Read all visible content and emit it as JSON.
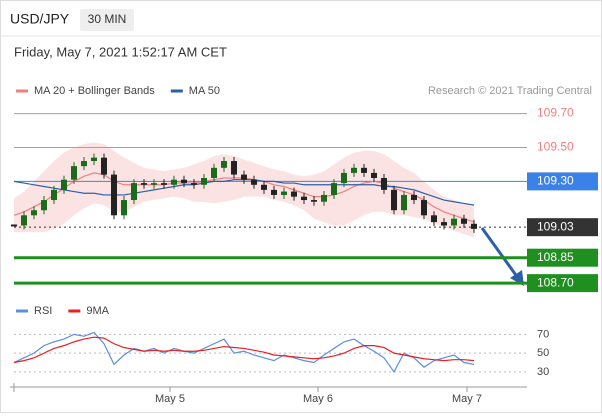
{
  "header": {
    "symbol": "USD/JPY",
    "timeframe": "30 MIN",
    "timestamp": "Friday, May 7, 2021 1:52:17 AM CET",
    "credit": "Research © 2021 Trading Central"
  },
  "chart_data": [
    {
      "type": "candlestick",
      "values": [
        109.04,
        109.1,
        109.13,
        109.19,
        109.25,
        109.31,
        109.39,
        109.42,
        109.44,
        109.34,
        109.1,
        109.19,
        109.29,
        109.28,
        109.29,
        109.28,
        109.31,
        109.29,
        109.28,
        109.32,
        109.38,
        109.42,
        109.34,
        109.31,
        109.28,
        109.25,
        109.22,
        109.24,
        109.21,
        109.19,
        109.18,
        109.22,
        109.29,
        109.35,
        109.38,
        109.35,
        109.32,
        109.25,
        109.13,
        109.22,
        109.19,
        109.1,
        109.06,
        109.04,
        109.08,
        109.05,
        109.02
      ],
      "series": [
        {
          "name": "MA 20 + Bollinger Bands",
          "color": "#f08080",
          "values": [
            109.1,
            109.12,
            109.15,
            109.18,
            109.22,
            109.26,
            109.3,
            109.33,
            109.35,
            109.34,
            109.3,
            109.28,
            109.28,
            109.28,
            109.28,
            109.28,
            109.29,
            109.29,
            109.29,
            109.3,
            109.31,
            109.32,
            109.32,
            109.32,
            109.31,
            109.3,
            109.28,
            109.27,
            109.25,
            109.23,
            109.21,
            109.21,
            109.22,
            109.24,
            109.27,
            109.29,
            109.3,
            109.29,
            109.26,
            109.24,
            109.22,
            109.19,
            109.15,
            109.12,
            109.1,
            109.08,
            109.06
          ],
          "upper": [
            109.2,
            109.24,
            109.3,
            109.36,
            109.42,
            109.47,
            109.5,
            109.52,
            109.53,
            109.52,
            109.48,
            109.44,
            109.41,
            109.38,
            109.37,
            109.36,
            109.37,
            109.38,
            109.4,
            109.42,
            109.45,
            109.46,
            109.45,
            109.43,
            109.41,
            109.39,
            109.37,
            109.36,
            109.34,
            109.33,
            109.34,
            109.36,
            109.4,
            109.44,
            109.47,
            109.48,
            109.48,
            109.46,
            109.42,
            109.38,
            109.35,
            109.3,
            109.25,
            109.21,
            109.19,
            109.17,
            109.15
          ],
          "lower": [
            109.0,
            109.0,
            109.0,
            109.0,
            109.02,
            109.05,
            109.1,
            109.14,
            109.17,
            109.16,
            109.12,
            109.12,
            109.15,
            109.18,
            109.19,
            109.2,
            109.21,
            109.2,
            109.18,
            109.18,
            109.17,
            109.18,
            109.19,
            109.21,
            109.21,
            109.21,
            109.19,
            109.18,
            109.16,
            109.13,
            109.08,
            109.06,
            109.04,
            109.04,
            109.07,
            109.1,
            109.12,
            109.12,
            109.1,
            109.1,
            109.09,
            109.08,
            109.05,
            109.03,
            109.01,
            108.99,
            108.97
          ]
        },
        {
          "name": "MA 50",
          "color": "#2b5fa8",
          "values": [
            109.3,
            109.29,
            109.28,
            109.27,
            109.26,
            109.25,
            109.24,
            109.23,
            109.23,
            109.22,
            109.22,
            109.22,
            109.23,
            109.24,
            109.25,
            109.26,
            109.27,
            109.28,
            109.28,
            109.29,
            109.3,
            109.3,
            109.31,
            109.31,
            109.31,
            109.3,
            109.3,
            109.29,
            109.29,
            109.28,
            109.28,
            109.28,
            109.28,
            109.28,
            109.28,
            109.28,
            109.28,
            109.27,
            109.27,
            109.26,
            109.25,
            109.23,
            109.21,
            109.19,
            109.18,
            109.17,
            109.16
          ]
        }
      ],
      "xlim": [
        0,
        50
      ],
      "ylim": [
        108.63,
        109.78
      ],
      "levels": [
        {
          "value": 109.7,
          "label": "109.70",
          "color": "#f08080",
          "style": "solid",
          "boxed": false
        },
        {
          "value": 109.5,
          "label": "109.50",
          "color": "#f08080",
          "style": "solid",
          "boxed": false
        },
        {
          "value": 109.3,
          "label": "109.30",
          "color": "#3b82e8",
          "style": "solid",
          "boxed": true
        },
        {
          "value": 109.03,
          "label": "109.03",
          "color": "#333333",
          "style": "dotted",
          "boxed": true
        },
        {
          "value": 108.85,
          "label": "108.85",
          "color": "#1f8f1f",
          "style": "thick",
          "boxed": true
        },
        {
          "value": 108.7,
          "label": "108.70",
          "color": "#1f8f1f",
          "style": "thick",
          "boxed": true
        }
      ]
    },
    {
      "type": "line",
      "series": [
        {
          "name": "RSI",
          "color": "#5b8ee8",
          "values": [
            40,
            45,
            50,
            58,
            62,
            65,
            70,
            68,
            72,
            60,
            38,
            48,
            55,
            52,
            55,
            50,
            55,
            52,
            50,
            55,
            60,
            65,
            50,
            52,
            48,
            45,
            42,
            48,
            45,
            42,
            40,
            48,
            55,
            62,
            65,
            58,
            52,
            45,
            30,
            50,
            45,
            35,
            42,
            45,
            48,
            40,
            38
          ]
        },
        {
          "name": "9MA",
          "color": "#e82020",
          "values": [
            40,
            42,
            45,
            50,
            55,
            58,
            62,
            65,
            67,
            66,
            60,
            56,
            54,
            52,
            53,
            52,
            53,
            52,
            52,
            53,
            55,
            57,
            56,
            55,
            53,
            51,
            48,
            47,
            46,
            45,
            44,
            45,
            47,
            50,
            55,
            58,
            58,
            56,
            50,
            48,
            46,
            44,
            43,
            42,
            43,
            43,
            42
          ]
        }
      ],
      "xlim": [
        0,
        50
      ],
      "ylim": [
        16,
        80
      ],
      "yticks": [
        70,
        50,
        30
      ],
      "xticks": [
        {
          "value": 15.6,
          "label": "May 5"
        },
        {
          "value": 30.4,
          "label": "May 6"
        },
        {
          "value": 45.3,
          "label": "May 7"
        }
      ]
    }
  ]
}
